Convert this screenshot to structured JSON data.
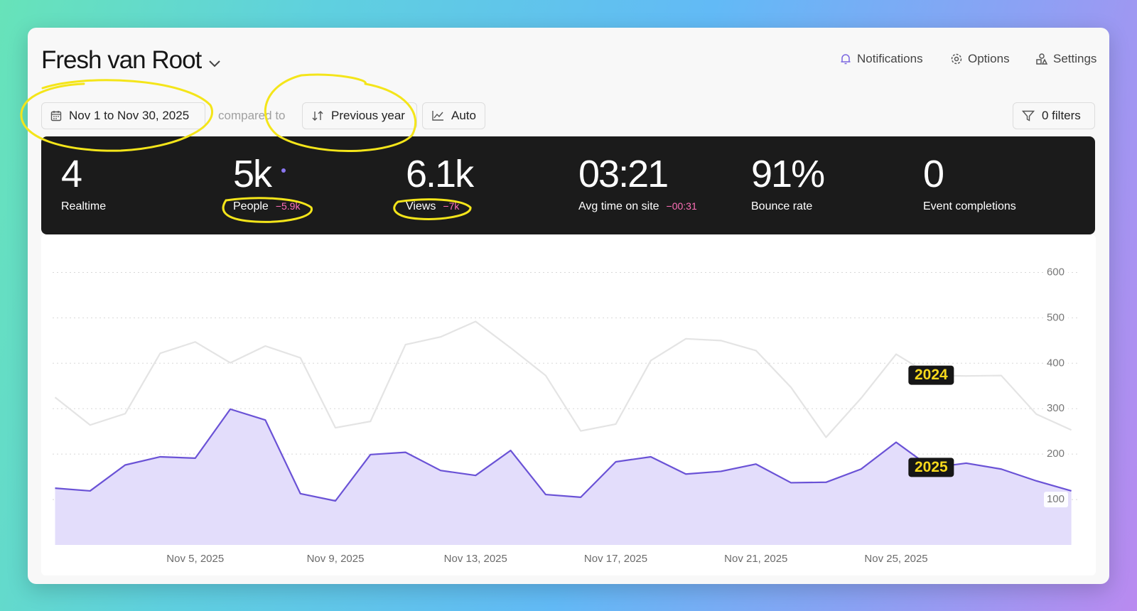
{
  "header": {
    "title": "Fresh van Root",
    "actions": [
      "Notifications",
      "Options",
      "Settings"
    ]
  },
  "toolbar": {
    "date_range": "Nov 1 to Nov 30, 2025",
    "compare_label": "compared to",
    "compare_mode": "Previous year",
    "interval": "Auto",
    "filters": "0 filters"
  },
  "stats": [
    {
      "value": "4",
      "label": "Realtime"
    },
    {
      "value": "5k",
      "label": "People",
      "change": "−5.9k"
    },
    {
      "value": "6.1k",
      "label": "Views",
      "change": "−7k"
    },
    {
      "value": "03:21",
      "label": "Avg time on site",
      "change": "−00:31"
    },
    {
      "value": "91%",
      "label": "Bounce rate"
    },
    {
      "value": "0",
      "label": "Event completions"
    }
  ],
  "chart_data": {
    "type": "line",
    "categories": [
      null,
      null,
      null,
      null,
      "Nov 5, 2025",
      null,
      null,
      null,
      "Nov 9, 2025",
      null,
      null,
      null,
      "Nov 13, 2025",
      null,
      null,
      null,
      "Nov 17, 2025",
      null,
      null,
      null,
      "Nov 21, 2025",
      null,
      null,
      null,
      "Nov 25, 2025",
      null,
      null,
      null,
      null,
      null
    ],
    "series": [
      {
        "name": "2024",
        "color": "#e4e4e4",
        "area": false,
        "values": [
          325,
          264,
          289,
          422,
          447,
          401,
          438,
          412,
          258,
          272,
          441,
          458,
          492,
          434,
          373,
          251,
          266,
          406,
          454,
          450,
          428,
          347,
          237,
          323,
          420,
          373,
          372,
          373,
          288,
          253
        ]
      },
      {
        "name": "2025",
        "color": "#6a52d6",
        "area": true,
        "area_color": "#e3ddfb",
        "values": [
          125,
          119,
          176,
          194,
          191,
          299,
          275,
          113,
          97,
          199,
          204,
          164,
          153,
          208,
          111,
          105,
          183,
          194,
          156,
          162,
          178,
          137,
          138,
          167,
          226,
          170,
          180,
          167,
          141,
          119
        ]
      }
    ],
    "ylim": [
      0,
      650
    ],
    "yticks": [
      100,
      200,
      300,
      400,
      500,
      600
    ],
    "grid": true
  }
}
